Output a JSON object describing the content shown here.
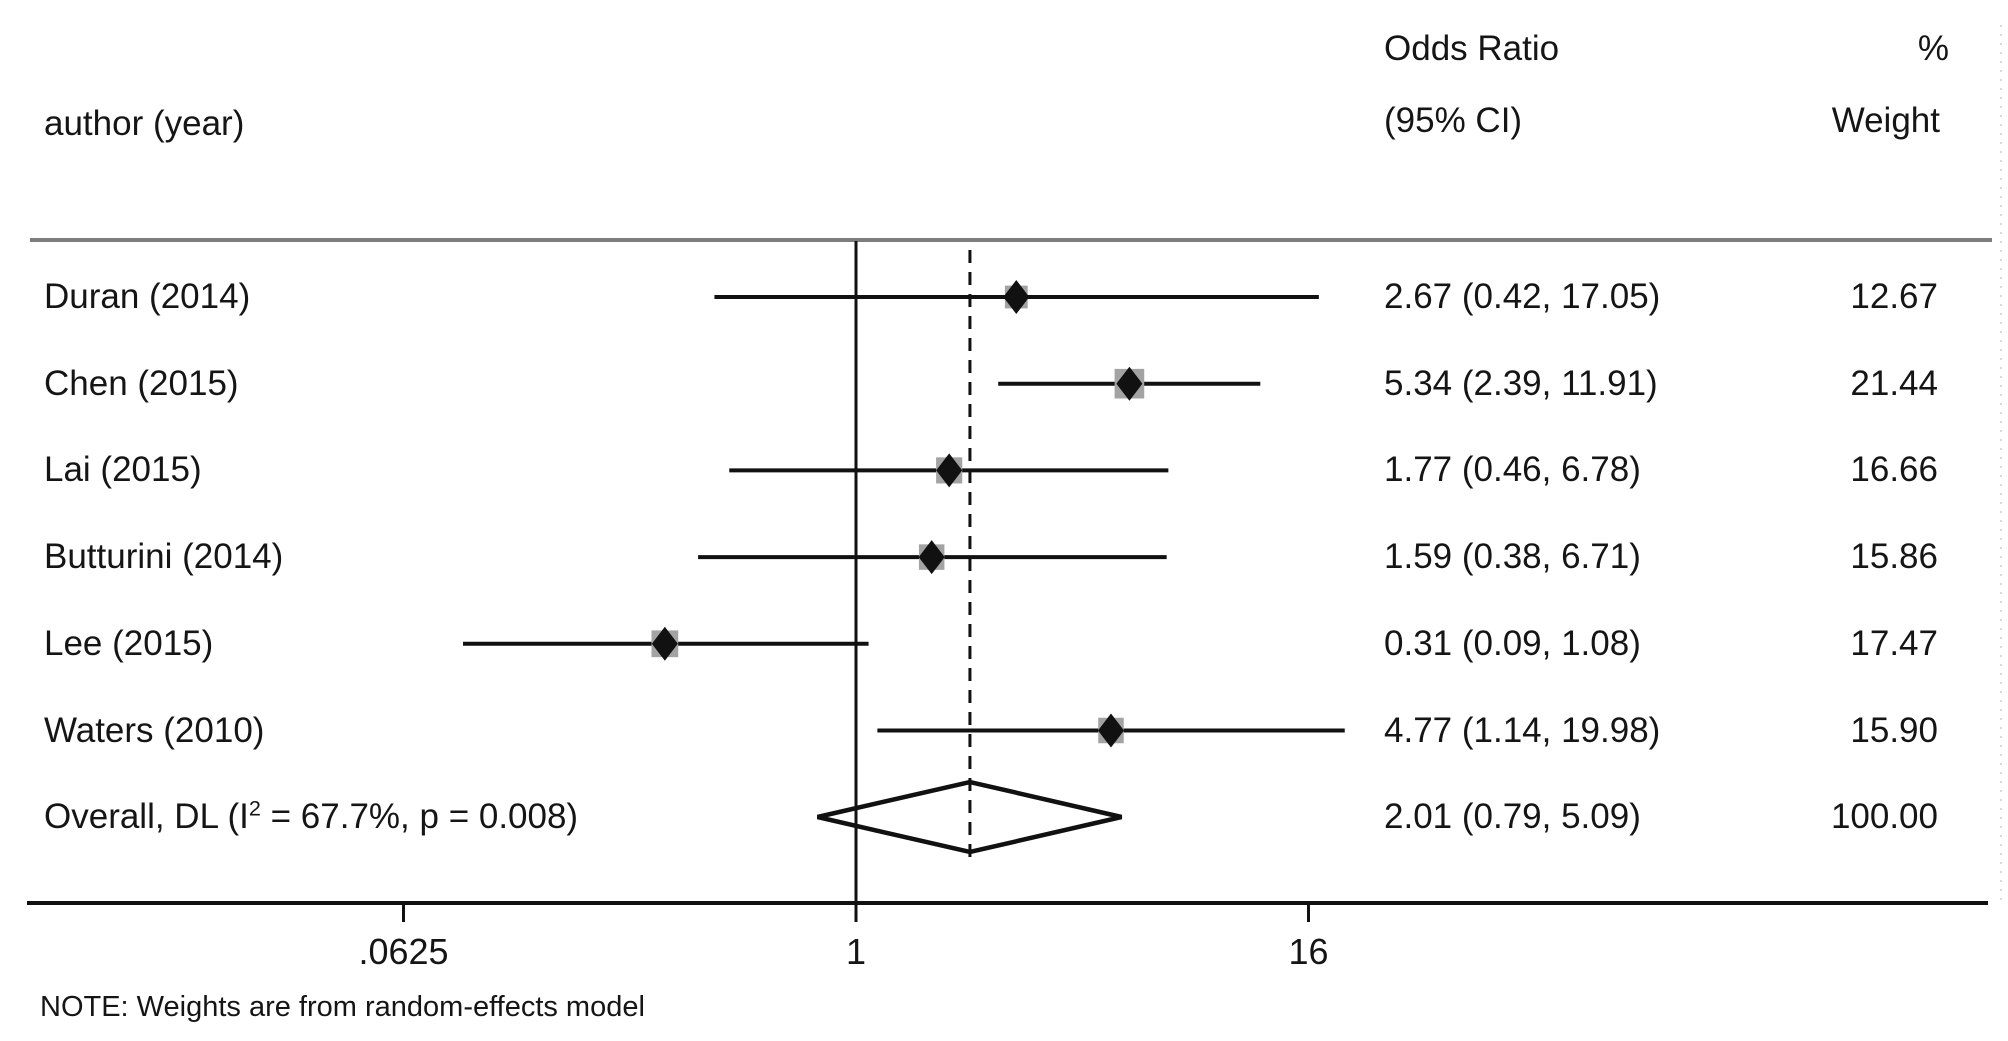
{
  "header": {
    "author_col": "author (year)",
    "or_col_line1": "Odds Ratio",
    "or_col_line2": "(95% CI)",
    "weight_col_line1": "%",
    "weight_col_line2": "Weight"
  },
  "note": "NOTE: Weights are from random-effects model",
  "colors": {
    "text": "#151515",
    "rule_gray": "#7d7d7d",
    "line_black": "#111111",
    "weight_box_gray": "#a3a3a3",
    "artifact_gray": "#d9d9d9"
  },
  "chart_data": {
    "type": "forest",
    "x_scale": "log2",
    "x_axis": {
      "ticks": [
        0.0625,
        1,
        16
      ],
      "tick_labels": [
        ".0625",
        "1",
        "16"
      ],
      "range": [
        0.045,
        24
      ]
    },
    "null_line_value": 1,
    "overall_dashed_line_value": 2.01,
    "studies": [
      {
        "label": "Duran (2014)",
        "or": 2.67,
        "ci_low": 0.42,
        "ci_high": 17.05,
        "or_text": "2.67 (0.42, 17.05)",
        "weight": 12.67,
        "weight_text": "12.67"
      },
      {
        "label": "Chen (2015)",
        "or": 5.34,
        "ci_low": 2.39,
        "ci_high": 11.91,
        "or_text": "5.34 (2.39, 11.91)",
        "weight": 21.44,
        "weight_text": "21.44"
      },
      {
        "label": "Lai (2015)",
        "or": 1.77,
        "ci_low": 0.46,
        "ci_high": 6.78,
        "or_text": "1.77 (0.46, 6.78)",
        "weight": 16.66,
        "weight_text": "16.66"
      },
      {
        "label": "Butturini (2014)",
        "or": 1.59,
        "ci_low": 0.38,
        "ci_high": 6.71,
        "or_text": "1.59 (0.38, 6.71)",
        "weight": 15.86,
        "weight_text": "15.86"
      },
      {
        "label": "Lee (2015)",
        "or": 0.31,
        "ci_low": 0.09,
        "ci_high": 1.08,
        "or_text": "0.31 (0.09, 1.08)",
        "weight": 17.47,
        "weight_text": "17.47"
      },
      {
        "label": "Waters (2010)",
        "or": 4.77,
        "ci_low": 1.14,
        "ci_high": 19.98,
        "or_text": "4.77 (1.14, 19.98)",
        "weight": 15.9,
        "weight_text": "15.90"
      }
    ],
    "overall": {
      "label_pre": "Overall, DL (I",
      "label_sup": "2",
      "label_post": " = 67.7%, p = 0.008)",
      "model": "random-effects (DL)",
      "i_squared_pct": 67.7,
      "p_heterogeneity": 0.008,
      "or": 2.01,
      "ci_low": 0.79,
      "ci_high": 5.09,
      "or_text": "2.01 (0.79, 5.09)",
      "weight": 100.0,
      "weight_text": "100.00"
    }
  }
}
